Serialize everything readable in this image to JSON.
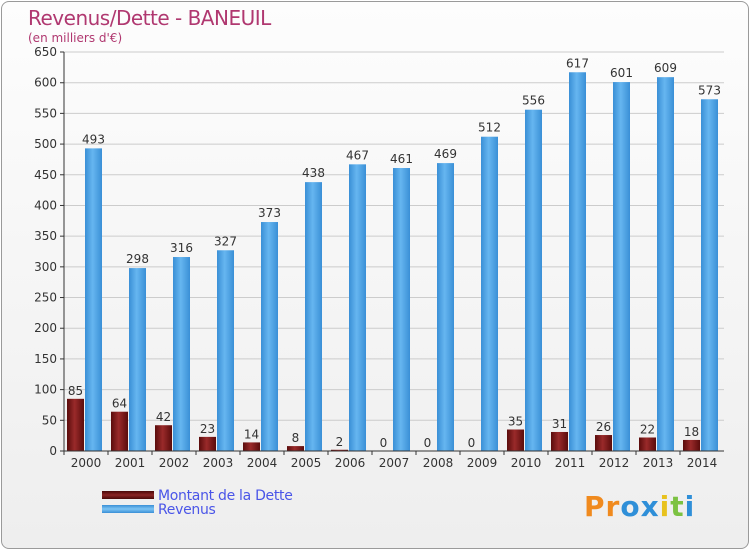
{
  "title": "Revenus/Dette - BANEUIL",
  "subtitle": "(en milliers d'€)",
  "colors": {
    "dette": "#7a1a1a",
    "revenus": "#4aa3e6",
    "axis": "#333333",
    "grid": "#cccccc"
  },
  "legend": [
    {
      "label": "Montant de la Dette",
      "color": "#6e1414"
    },
    {
      "label": "Revenus",
      "color": "#4aa3e6"
    }
  ],
  "logo": {
    "text": "Proxiti",
    "letters": [
      "P",
      "r",
      "o",
      "x",
      "i",
      "t",
      "i"
    ],
    "colors": [
      "#f08a1e",
      "#f08a1e",
      "#2f8fd8",
      "#2f8fd8",
      "#e8c21e",
      "#7cc242",
      "#2f8fd8"
    ]
  },
  "chart_data": {
    "type": "bar",
    "title": "Revenus/Dette - BANEUIL",
    "ylabel": "(en milliers d'€)",
    "ylim": [
      0,
      650
    ],
    "yticks": [
      0,
      50,
      100,
      150,
      200,
      250,
      300,
      350,
      400,
      450,
      500,
      550,
      600,
      650
    ],
    "grid": true,
    "categories": [
      "2000",
      "2001",
      "2002",
      "2003",
      "2004",
      "2005",
      "2006",
      "2007",
      "2008",
      "2009",
      "2010",
      "2011",
      "2012",
      "2013",
      "2014"
    ],
    "series": [
      {
        "name": "Montant de la Dette",
        "values": [
          85,
          64,
          42,
          23,
          14,
          8,
          2,
          0,
          0,
          0,
          35,
          31,
          26,
          22,
          18
        ]
      },
      {
        "name": "Revenus",
        "values": [
          493,
          298,
          316,
          327,
          373,
          438,
          467,
          461,
          469,
          512,
          556,
          617,
          601,
          609,
          573
        ]
      }
    ],
    "legend_position": "bottom-left"
  }
}
